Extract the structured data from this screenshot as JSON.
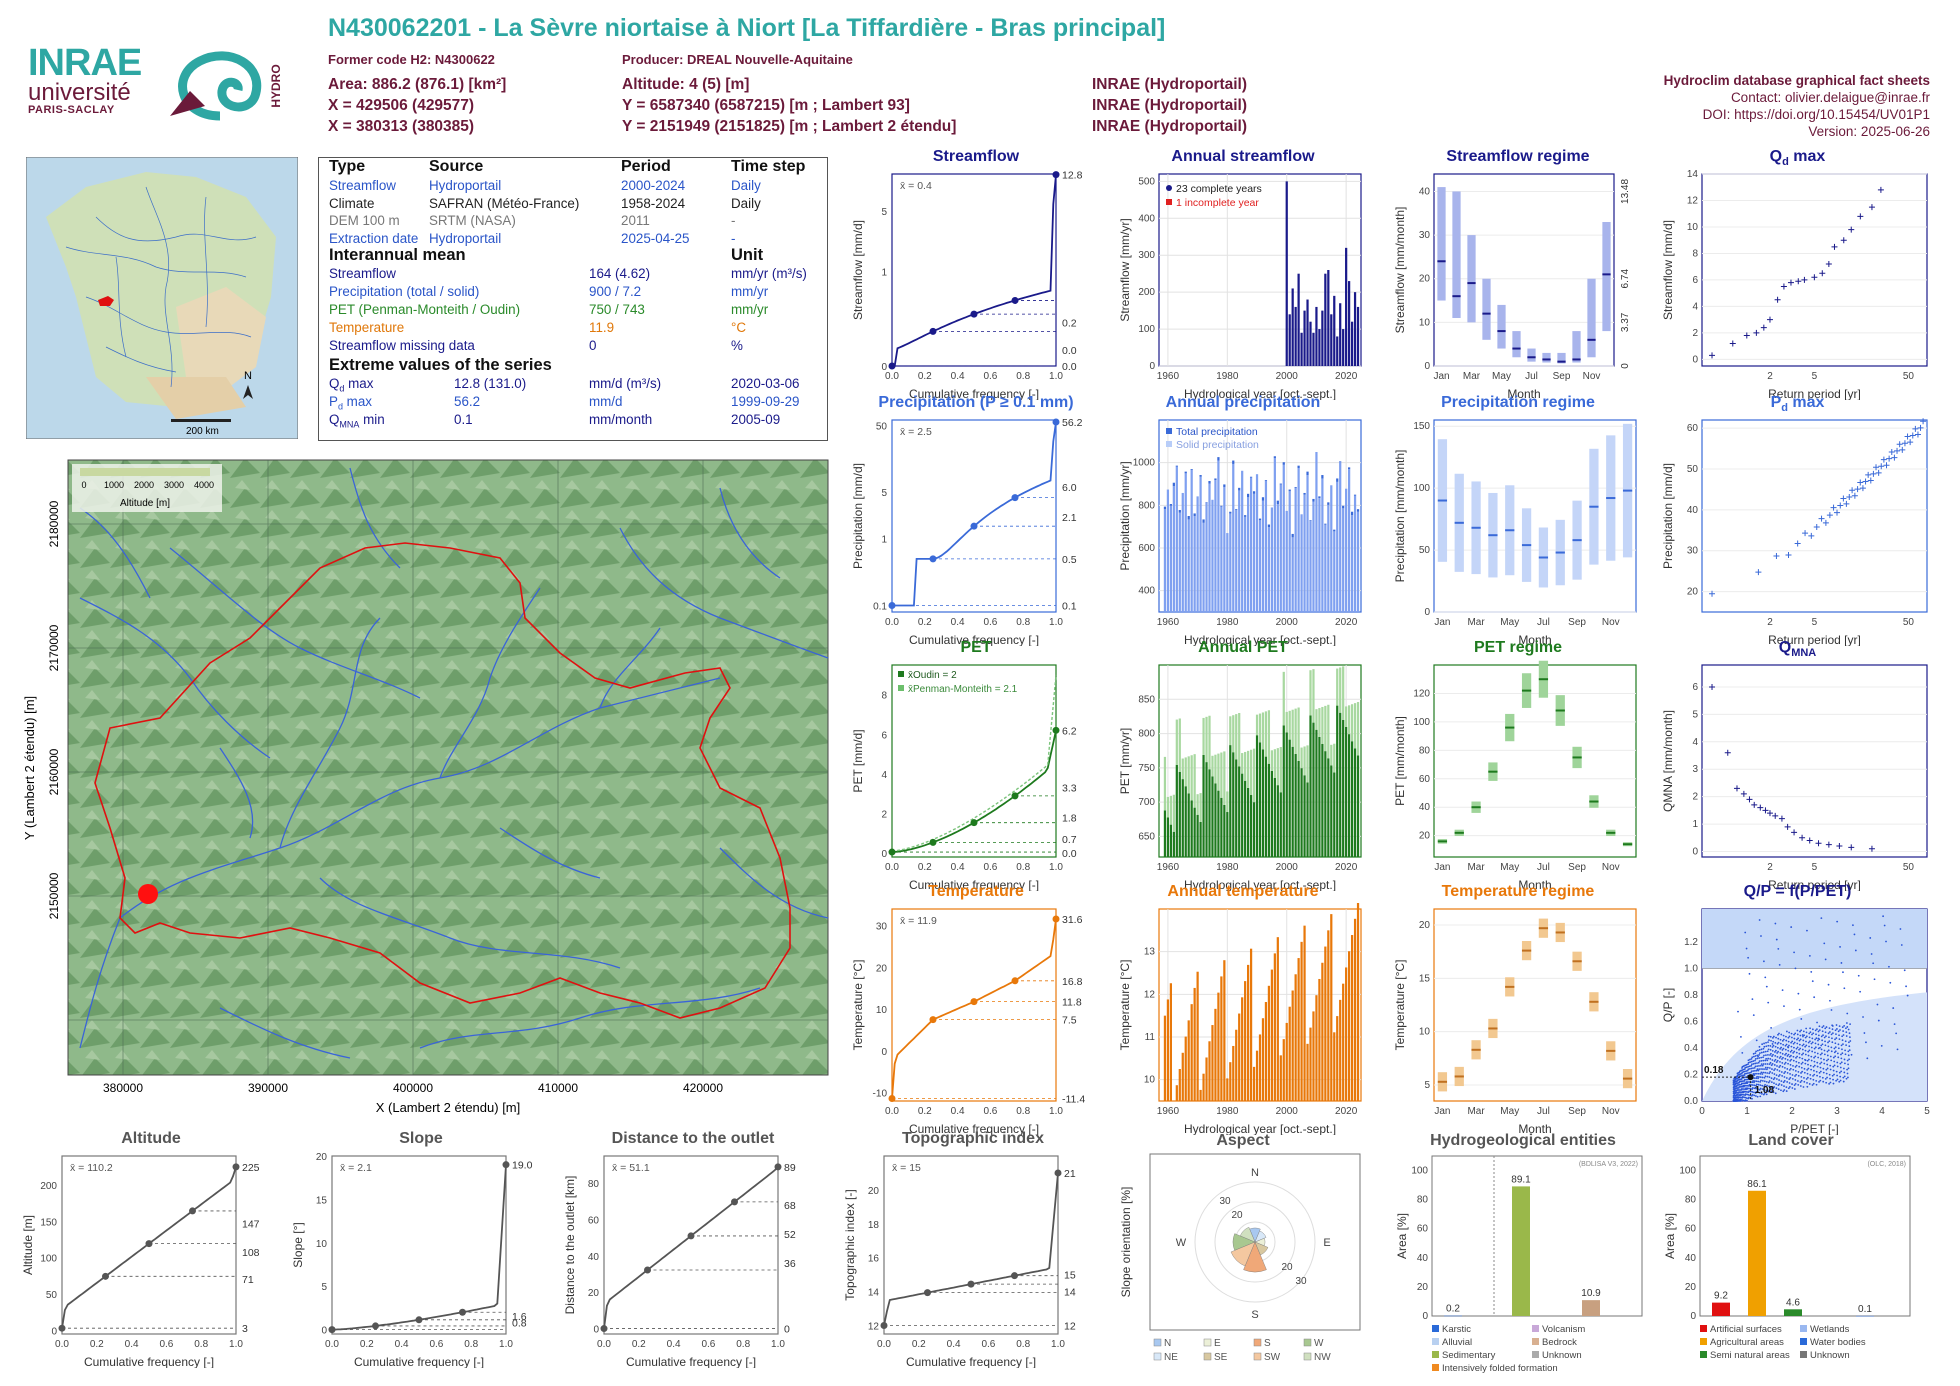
{
  "header": {
    "title": "N430062201 - La Sèvre niortaise à Niort [La Tiffardière - Bras principal]",
    "former_code": "Former code H2: N4300622",
    "producer": "Producer: DREAL Nouvelle-Aquitaine",
    "area": "Area: 886.2 (876.1) [km²]",
    "x": "X = 429506 (429577)",
    "x2": "X = 380313 (380385)",
    "altitude": "Altitude: 4 (5) [m]",
    "y": "Y = 6587340 (6587215) [m ; Lambert 93]",
    "y2": "Y = 2151949 (2151825) [m ; Lambert 2 étendu]",
    "inrae1": "INRAE (Hydroportail)",
    "inrae2": "INRAE (Hydroportail)",
    "inrae3": "INRAE (Hydroportail)",
    "db": "Hydroclim database graphical fact sheets",
    "contact": "Contact: olivier.delaigue@inrae.fr",
    "doi": "DOI: https://doi.org/10.15454/UV01P1",
    "version": "Version: 2025-06-26"
  },
  "logos": {
    "inrae": "INRAE",
    "univ1": "université",
    "univ2": "PARIS-SACLAY",
    "hydro": "HYDRO"
  },
  "minimap": {
    "north": "N",
    "scale": "200 km"
  },
  "info": {
    "h_type": "Type",
    "h_source": "Source",
    "h_period": "Period",
    "h_step": "Time step",
    "rows": [
      {
        "type": "Streamflow",
        "source": "Hydroportail",
        "period": "2000-2024",
        "step": "Daily",
        "cls": "blue"
      },
      {
        "type": "Climate",
        "source": "SAFRAN (Météo-France)",
        "period": "1958-2024",
        "step": "Daily",
        "cls": ""
      },
      {
        "type": "DEM 100 m",
        "source": "SRTM (NASA)",
        "period": "2011",
        "step": "-",
        "cls": "grey"
      },
      {
        "type": "Extraction date",
        "source": "Hydroportail",
        "period": "2025-04-25",
        "step": "-",
        "cls": "blue"
      }
    ],
    "h_mean": "Interannual mean",
    "h_unit": "Unit",
    "means": [
      {
        "name": "Streamflow",
        "val": "164 (4.62)",
        "unit": "mm/yr (m³/s)",
        "cls": "dark"
      },
      {
        "name": "Precipitation (total / solid)",
        "val": "900 / 7.2",
        "unit": "mm/yr",
        "cls": "blue"
      },
      {
        "name": "PET (Penman-Monteith / Oudin)",
        "val": "750 / 743",
        "unit": "mm/yr",
        "cls": "green"
      },
      {
        "name": "Temperature",
        "val": "11.9",
        "unit": "°C",
        "cls": "orange"
      },
      {
        "name": "Streamflow missing data",
        "val": "0",
        "unit": "%",
        "cls": "dark"
      }
    ],
    "h_ext": "Extreme values of the series",
    "ext": [
      {
        "n1": "Q",
        "sub": "d",
        "n2": " max",
        "v": "12.8 (131.0)",
        "u": "mm/d (m³/s)",
        "d": "2020-03-06",
        "cls": "dark"
      },
      {
        "n1": "P",
        "sub": "d",
        "n2": " max",
        "v": "56.2",
        "u": "mm/d",
        "d": "1999-09-29",
        "cls": "blue"
      },
      {
        "n1": "Q",
        "sub": "MNA",
        "n2": " min",
        "v": "0.1",
        "u": "mm/month",
        "d": "2005-09",
        "cls": "dark"
      }
    ]
  },
  "map": {
    "xlabel": "X (Lambert 2 étendu) [m]",
    "ylabel": "Y (Lambert 2 étendu) [m]",
    "xticks": [
      "380000",
      "390000",
      "400000",
      "410000",
      "420000"
    ],
    "yticks": [
      "2150000",
      "2160000",
      "2170000",
      "2180000"
    ],
    "legend_title": "Altitude [m]",
    "legend_ticks": [
      "0",
      "1000",
      "2000",
      "3000",
      "4000"
    ]
  },
  "panels": {
    "streamflow": {
      "title": "Streamflow",
      "ylabel": "Streamflow [mm/d]",
      "xlabel": "Cumulative frequency [-]",
      "mean": "x̄ = 0.4",
      "right": [
        "12.8",
        "0.2",
        "0.0",
        "0.0"
      ],
      "left": [
        "5",
        "1",
        "0"
      ]
    },
    "annual_streamflow": {
      "title": "Annual streamflow",
      "ylabel": "Streamflow [mm/yr]",
      "xlabel": "Hydrological year [oct.-sept.]",
      "leg1": "23 complete years",
      "leg2": "1 incomplete year"
    },
    "streamflow_regime": {
      "title": "Streamflow regime",
      "ylabel": "Streamflow [mm/month]",
      "xlabel": "Month",
      "right": [
        "13.48",
        "6.74",
        "3.37",
        "0"
      ]
    },
    "qd_max": {
      "title": "Q",
      "sub": "d",
      "tail": " max",
      "ylabel": "Streamflow [mm/d]",
      "xlabel": "Return period [yr]"
    },
    "precip": {
      "title": "Precipitation (P ≥ 0.1 mm)",
      "ylabel": "Precipitation [mm/d]",
      "xlabel": "Cumulative frequency [-]",
      "mean": "x̄ = 2.5",
      "right": [
        "56.2",
        "6.0",
        "2.1",
        "0.5",
        "0.1"
      ]
    },
    "annual_precip": {
      "title": "Annual precipitation",
      "ylabel": "Precipitation [mm/yr]",
      "xlabel": "Hydrological year [oct.-sept.]",
      "leg1": "Total precipitation",
      "leg2": "Solid precipitation"
    },
    "precip_regime": {
      "title": "Precipitation regime",
      "ylabel": "Precipitation [mm/month]",
      "xlabel": "Month"
    },
    "pd_max": {
      "title": "P",
      "sub": "d",
      "tail": " max",
      "ylabel": "Precipitation [mm/d]",
      "xlabel": "Return period [yr]"
    },
    "pet": {
      "title": "PET",
      "ylabel": "PET [mm/d]",
      "xlabel": "Cumulative frequency [-]",
      "leg1": "x̄Oudin = 2",
      "leg2": "x̄Penman-Monteith = 2.1",
      "right": [
        "6.2",
        "3.3",
        "1.8",
        "0.7",
        "0.0"
      ]
    },
    "annual_pet": {
      "title": "Annual PET",
      "ylabel": "PET [mm/yr]",
      "xlabel": "Hydrological year [oct.-sept.]"
    },
    "pet_regime": {
      "title": "PET regime",
      "ylabel": "PET [mm/month]",
      "xlabel": "Month"
    },
    "qmna": {
      "title": "Q",
      "sub": "MNA",
      "tail": "",
      "ylabel": "QMNA [mm/month]",
      "xlabel": "Return period [yr]"
    },
    "temp": {
      "title": "Temperature",
      "ylabel": "Temperature [°C]",
      "xlabel": "Cumulative frequency [-]",
      "mean": "x̄ = 11.9",
      "right": [
        "31.6",
        "16.8",
        "11.8",
        "7.5",
        "-11.4"
      ]
    },
    "annual_temp": {
      "title": "Annual temperature",
      "ylabel": "Temperature [°C]",
      "xlabel": "Hydrological year [oct.-sept.]"
    },
    "temp_regime": {
      "title": "Temperature regime",
      "ylabel": "Temperature [°C]",
      "xlabel": "Month"
    },
    "qp": {
      "title": "Q/P = f(P/PET)",
      "ylabel": "Q/P [-]",
      "xlabel": "P/PET [-]",
      "a1": "0.18",
      "a2": "1.08"
    },
    "altitude": {
      "title": "Altitude",
      "ylabel": "Altitude [m]",
      "xlabel": "Cumulative frequency [-]",
      "mean": "x̄ = 110.2",
      "right": [
        "225",
        "147",
        "108",
        "71",
        "3"
      ]
    },
    "slope": {
      "title": "Slope",
      "ylabel": "Slope [°]",
      "xlabel": "Cumulative frequency [-]",
      "mean": "x̄ = 2.1",
      "right": [
        "19.0",
        "1.6",
        "0.8"
      ]
    },
    "distance": {
      "title": "Distance to the outlet",
      "ylabel": "Distance to the outlet [km]",
      "xlabel": "Cumulative frequency [-]",
      "mean": "x̄ = 51.1",
      "right": [
        "89",
        "68",
        "52",
        "36",
        "0"
      ]
    },
    "topo": {
      "title": "Topographic index",
      "ylabel": "Topographic index [-]",
      "xlabel": "Cumulative frequency [-]",
      "mean": "x̄ = 15",
      "right": [
        "21",
        "15",
        "14",
        "12"
      ]
    },
    "aspect": {
      "title": "Aspect",
      "ylabel": "Slope orientation [%]",
      "legend": [
        "N",
        "E",
        "S",
        "W",
        "NE",
        "SE",
        "SW",
        "NW"
      ]
    },
    "hydrogeo": {
      "title": "Hydrogeological entities",
      "ylabel": "Area [%]",
      "src": "(BDLISA V3, 2022)",
      "legend": [
        "Karstic",
        "Volcanism",
        "Alluvial",
        "Bedrock",
        "Sedimentary",
        "Unknown",
        "Intensively folded formation"
      ]
    },
    "landcover": {
      "title": "Land cover",
      "ylabel": "Area [%]",
      "src": "(OLC, 2018)",
      "legend": [
        "Artificial surfaces",
        "Wetlands",
        "Agricultural areas",
        "Water bodies",
        "Semi natural areas",
        "Unknown"
      ]
    }
  },
  "chart_data": [
    {
      "type": "line",
      "title": "Streamflow",
      "x": [
        0,
        0.25,
        0.5,
        0.75,
        1
      ],
      "values": [
        0.0,
        0.0,
        0.2,
        0.4,
        12.8
      ]
    },
    {
      "type": "bar",
      "title": "Annual streamflow",
      "x": [
        2000,
        2001,
        2002,
        2003,
        2004,
        2005,
        2006,
        2007,
        2008,
        2009,
        2010,
        2011,
        2012,
        2013,
        2014,
        2015,
        2016,
        2017,
        2018,
        2019,
        2020,
        2021,
        2022,
        2023,
        2024
      ],
      "values": [
        500,
        140,
        210,
        160,
        250,
        90,
        150,
        180,
        120,
        90,
        160,
        100,
        150,
        250,
        260,
        140,
        190,
        80,
        170,
        100,
        320,
        230,
        120,
        200,
        160
      ]
    },
    {
      "type": "box",
      "title": "Streamflow regime",
      "categories": [
        "Jan",
        "Feb",
        "Mar",
        "Apr",
        "May",
        "Jun",
        "Jul",
        "Aug",
        "Sep",
        "Oct",
        "Nov",
        "Dec"
      ],
      "medians": [
        24,
        16,
        19,
        12,
        8,
        4,
        2,
        1.5,
        1,
        1.5,
        6,
        21
      ]
    },
    {
      "type": "scatter",
      "title": "Qd max",
      "x": [
        1.05,
        1.2,
        1.4,
        1.6,
        1.8,
        2,
        2.3,
        2.6,
        3,
        3.5,
        4,
        5,
        6,
        7,
        8,
        10,
        12,
        15,
        20,
        25
      ],
      "values": [
        0.3,
        1.2,
        1.8,
        2.0,
        2.4,
        3.0,
        4.5,
        5.5,
        5.8,
        5.9,
        6.0,
        6.2,
        6.5,
        7.2,
        8.5,
        9.0,
        9.8,
        10.8,
        11.5,
        12.8
      ]
    },
    {
      "type": "line",
      "title": "Precipitation",
      "x": [
        0,
        0.25,
        0.5,
        0.75,
        1
      ],
      "values": [
        0.1,
        0.5,
        2.1,
        6.0,
        56.2
      ]
    },
    {
      "type": "bar",
      "title": "Annual precipitation",
      "x": "1959-2024",
      "values": []
    },
    {
      "type": "box",
      "title": "Precipitation regime",
      "categories": [
        "Jan",
        "Feb",
        "Mar",
        "Apr",
        "May",
        "Jun",
        "Jul",
        "Aug",
        "Sep",
        "Oct",
        "Nov",
        "Dec"
      ],
      "medians": [
        90,
        72,
        68,
        62,
        66,
        54,
        44,
        48,
        58,
        85,
        92,
        98
      ]
    },
    {
      "type": "scatter",
      "title": "Pd max",
      "note": "points rising from ~20 to 56 over return period"
    },
    {
      "type": "line",
      "title": "PET",
      "x": [
        0,
        0.25,
        0.5,
        0.75,
        1
      ],
      "values": [
        0.0,
        0.7,
        1.8,
        3.3,
        6.2
      ]
    },
    {
      "type": "bar",
      "title": "Annual PET"
    },
    {
      "type": "box",
      "title": "PET regime",
      "categories": [
        "Jan",
        "Feb",
        "Mar",
        "Apr",
        "May",
        "Jun",
        "Jul",
        "Aug",
        "Sep",
        "Oct",
        "Nov",
        "Dec"
      ],
      "medians": [
        16,
        22,
        40,
        65,
        96,
        122,
        130,
        108,
        75,
        44,
        22,
        14
      ]
    },
    {
      "type": "scatter",
      "title": "QMNA",
      "x": [
        1.05,
        1.2,
        1.4,
        1.6,
        2,
        2.5,
        3,
        4,
        5,
        7,
        10,
        20
      ],
      "values": [
        6.0,
        3.5,
        2.3,
        1.9,
        1.5,
        1.2,
        1.0,
        0.7,
        0.4,
        0.3,
        0.2,
        0.1
      ]
    },
    {
      "type": "line",
      "title": "Temperature",
      "x": [
        0,
        0.25,
        0.5,
        0.75,
        1
      ],
      "values": [
        -11.4,
        7.5,
        11.8,
        16.8,
        31.6
      ]
    },
    {
      "type": "bar",
      "title": "Annual temperature"
    },
    {
      "type": "box",
      "title": "Temperature regime",
      "categories": [
        "Jan",
        "Feb",
        "Mar",
        "Apr",
        "May",
        "Jun",
        "Jul",
        "Aug",
        "Sep",
        "Oct",
        "Nov",
        "Dec"
      ],
      "medians": [
        5.3,
        5.8,
        8.3,
        10.3,
        14.2,
        17.6,
        19.7,
        19.3,
        16.6,
        12.8,
        8.2,
        5.6
      ]
    },
    {
      "type": "scatter",
      "title": "Q/P = f(P/PET)",
      "annotations": [
        "0.18",
        "1.08"
      ]
    },
    {
      "type": "line",
      "title": "Altitude",
      "x": [
        0,
        0.25,
        0.5,
        0.75,
        1
      ],
      "values": [
        3,
        71,
        108,
        147,
        225
      ]
    },
    {
      "type": "line",
      "title": "Slope",
      "x": [
        0,
        0.25,
        0.5,
        0.75,
        1
      ],
      "values": [
        0,
        0.8,
        1.6,
        2.4,
        19.0
      ]
    },
    {
      "type": "line",
      "title": "Distance to the outlet",
      "x": [
        0,
        0.25,
        0.5,
        0.75,
        1
      ],
      "values": [
        0,
        36,
        52,
        68,
        89
      ]
    },
    {
      "type": "line",
      "title": "Topographic index",
      "x": [
        0,
        0.25,
        0.5,
        0.75,
        1
      ],
      "values": [
        12,
        14,
        14.5,
        15,
        21
      ]
    },
    {
      "type": "bar",
      "title": "Hydrogeological entities",
      "categories": [
        "Karstic",
        "Alluvial",
        "Sedimentary",
        "Volcanism",
        "Bedrock",
        "Unknown",
        "Intensively folded formation"
      ],
      "values": [
        0.2,
        0,
        89.1,
        0,
        10.9,
        0,
        0
      ]
    },
    {
      "type": "bar",
      "title": "Land cover",
      "categories": [
        "Artificial surfaces",
        "Agricultural areas",
        "Semi natural areas",
        "Wetlands",
        "Water bodies",
        "Unknown"
      ],
      "values": [
        9.2,
        86.1,
        4.6,
        0,
        0.1,
        0
      ]
    }
  ],
  "colors": {
    "teal": "#2ea7a3",
    "maroon": "#6b1a3a",
    "streamflow": "#1a1a8a",
    "precip": "#3a6ad8",
    "pet": "#1e7a1e",
    "temp": "#e8780a"
  }
}
